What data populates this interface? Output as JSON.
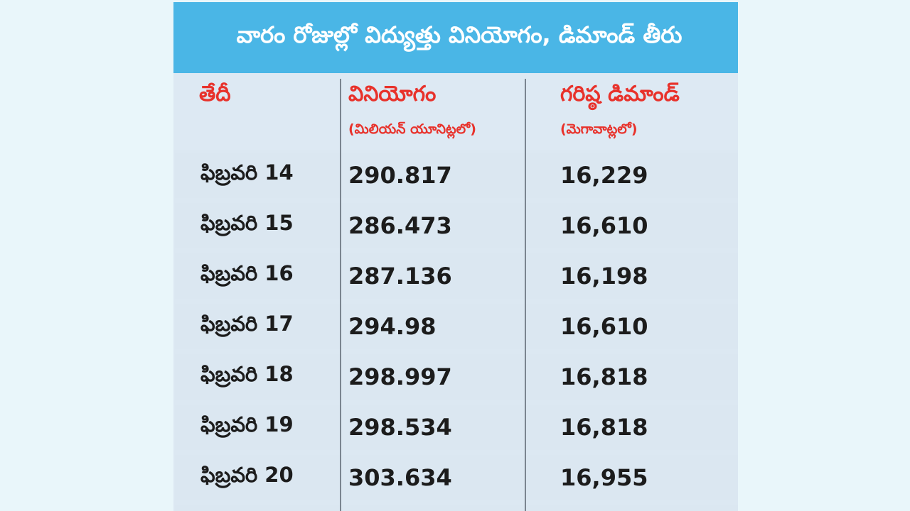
{
  "title": "వారం రోజుల్లో విద్యుత్తు వినియోగం, డిమాండ్‌ తీరు",
  "headers": {
    "date": "తేదీ",
    "consumption": "వినియోగం",
    "consumption_unit": "(మిలియన్‌ యూనిట్లలో)",
    "peak_demand": "గరిష్ఠ డిమాండ్‌",
    "peak_demand_unit": "(మెగావాట్లలో)"
  },
  "rows": [
    {
      "date": "ఫిబ్రవరి 14",
      "consumption": "290.817",
      "peak_demand": "16,229"
    },
    {
      "date": "ఫిబ్రవరి 15",
      "consumption": "286.473",
      "peak_demand": "16,610"
    },
    {
      "date": "ఫిబ్రవరి 16",
      "consumption": "287.136",
      "peak_demand": "16,198"
    },
    {
      "date": "ఫిబ్రవరి 17",
      "consumption": "294.98",
      "peak_demand": "16,610"
    },
    {
      "date": "ఫిబ్రవరి 18",
      "consumption": "298.997",
      "peak_demand": "16,818"
    },
    {
      "date": "ఫిబ్రవరి 19",
      "consumption": "298.534",
      "peak_demand": "16,818"
    },
    {
      "date": "ఫిబ్రవరి 20",
      "consumption": "303.634",
      "peak_demand": "16,955"
    }
  ],
  "colors": {
    "title_bar": "#4ab6e6",
    "header_text": "#e8322b",
    "row_background": "#dbe7f1",
    "page_background": "#e9f6fa"
  }
}
